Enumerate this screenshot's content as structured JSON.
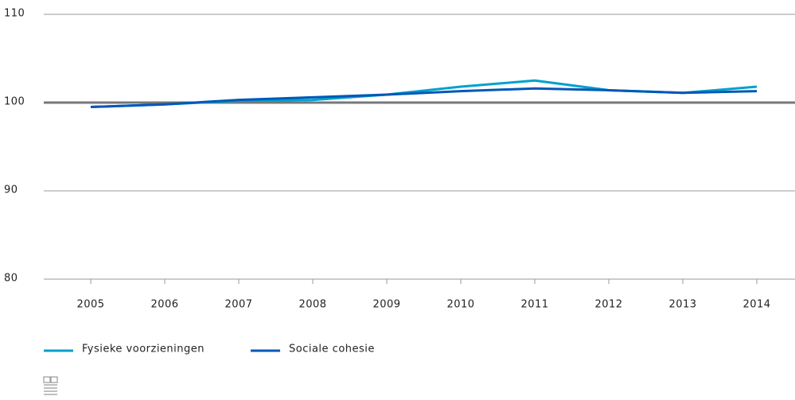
{
  "chart_data": {
    "type": "line",
    "categories": [
      "2005",
      "2006",
      "2007",
      "2008",
      "2009",
      "2010",
      "2011",
      "2012",
      "2013",
      "2014"
    ],
    "series": [
      {
        "name": "Fysieke voorzieningen",
        "color": "#00a1cd",
        "values": [
          99.5,
          99.8,
          100.2,
          100.3,
          100.9,
          101.8,
          102.5,
          101.4,
          101.1,
          101.8
        ]
      },
      {
        "name": "Sociale cohesie",
        "color": "#0058b8",
        "values": [
          99.5,
          99.8,
          100.3,
          100.6,
          100.9,
          101.3,
          101.6,
          101.4,
          101.1,
          101.3
        ]
      }
    ],
    "ylim": [
      80,
      110
    ],
    "yticks": [
      80,
      90,
      100,
      110
    ],
    "grid": true,
    "baseline": 100,
    "legend": "bottom-left"
  }
}
